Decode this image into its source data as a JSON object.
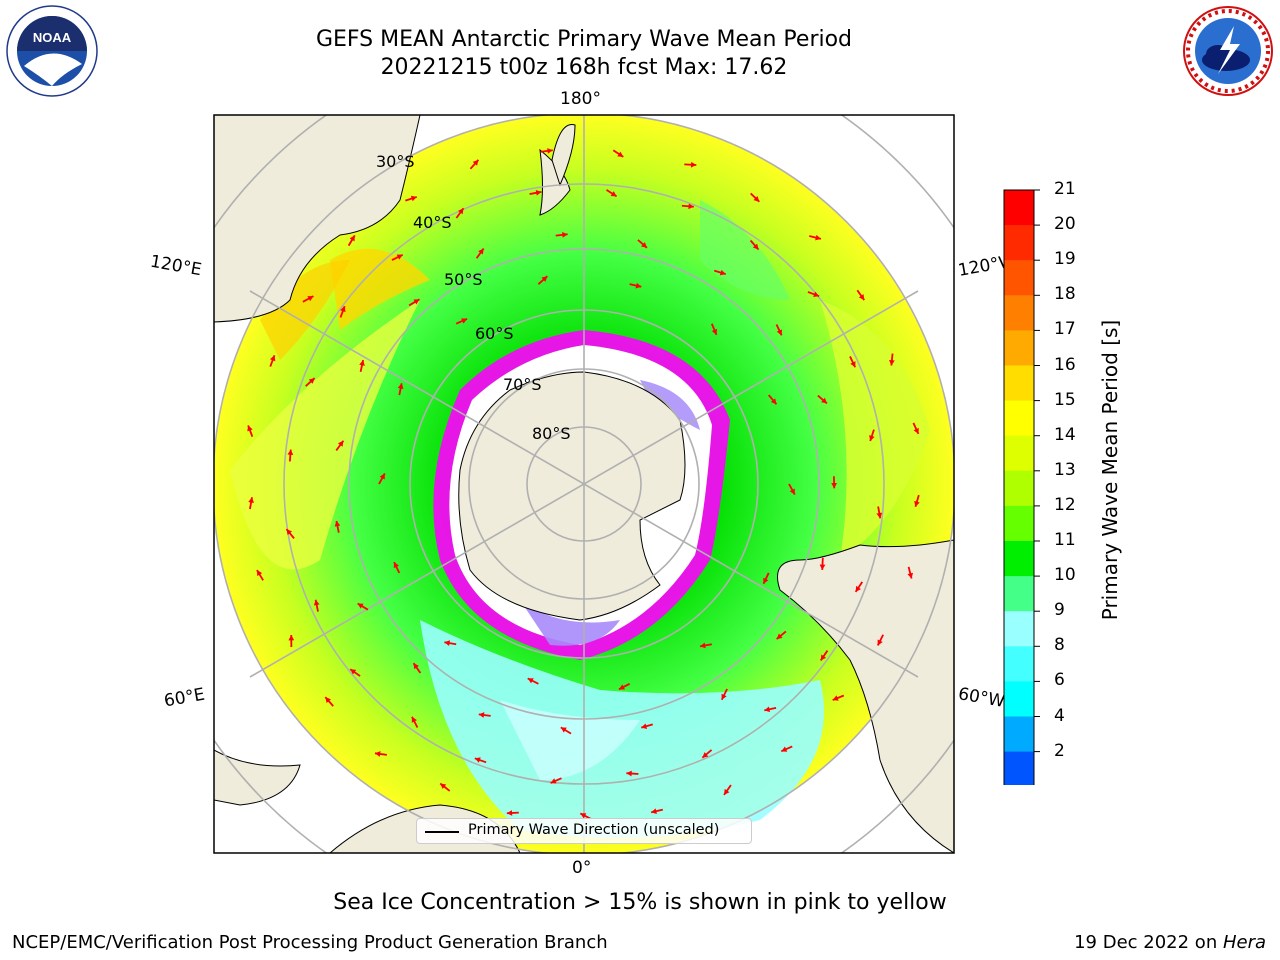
{
  "header": {
    "title_line1": "GEFS MEAN Antarctic Primary Wave Mean Period",
    "title_line2": "20221215 t00z 168h fcst   Max: 17.62"
  },
  "logos": {
    "left": {
      "name": "noaa-logo",
      "text": "NOAA",
      "ring_text": "NATIONAL OCEANIC AND ATMOSPHERIC ADMINISTRATION · U.S. DEPARTMENT OF COMMERCE"
    },
    "right": {
      "name": "nws-logo",
      "ring_text": "NATIONAL WEATHER SERVICE"
    }
  },
  "map": {
    "projection": "south-polar-stereographic",
    "meridian_labels": {
      "top": "180°",
      "bottom": "0°",
      "upper_left": "120°E",
      "upper_right": "120°W",
      "lower_left": "60°E",
      "lower_right": "60°W"
    },
    "latitude_labels": [
      "30°S",
      "40°S",
      "50°S",
      "60°S",
      "70°S",
      "80°S"
    ],
    "legend_text": "Primary Wave Direction (unscaled)",
    "arrow_color": "#ff0000",
    "land_color": "#efecdc",
    "ice_colors": [
      "#ff00ff",
      "#ffffff",
      "#ffd27f",
      "#a78bfa",
      "#00ffff"
    ]
  },
  "colorbar": {
    "label": "Primary Wave Mean Period [s]",
    "ticks": [
      "21",
      "20",
      "19",
      "18",
      "17",
      "16",
      "15",
      "14",
      "13",
      "12",
      "11",
      "10",
      "9",
      "8",
      "6",
      "4",
      "2"
    ],
    "colors_top_to_bottom": [
      "#ff0000",
      "#ff2a00",
      "#ff5500",
      "#ff8000",
      "#ffaa00",
      "#ffdd00",
      "#ffff00",
      "#ddff00",
      "#b0ff00",
      "#66ff00",
      "#00ee00",
      "#44ff88",
      "#99ffff",
      "#44ffff",
      "#00ffff",
      "#00aaff",
      "#0055ff"
    ],
    "extend_color": "#0000ff"
  },
  "note": "Sea Ice Concentration > 15% is shown in pink to yellow",
  "footer": {
    "left": "NCEP/EMC/Verification Post Processing Product Generation Branch",
    "right_plain": "19 Dec 2022 on ",
    "right_italic": "Hera"
  }
}
